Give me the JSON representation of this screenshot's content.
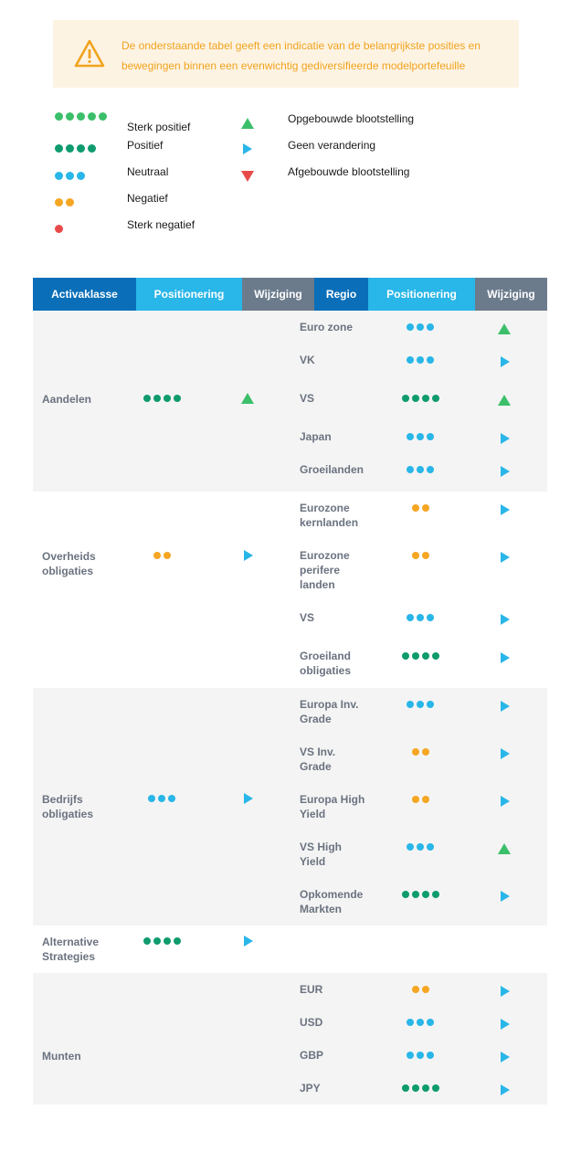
{
  "notice": {
    "icon": "warning-icon",
    "line1": "De onderstaande tabel geeft een indicatie van de belangrijkste posities en",
    "line2": "bewegingen binnen een evenwichtig gediversifieerde modelportefeuille"
  },
  "legend": {
    "levels": [
      {
        "label": "Sterk positief",
        "dots": 5,
        "color": "#3bbf6a"
      },
      {
        "label": "Positief",
        "dots": 4,
        "color": "#0e9b6e"
      },
      {
        "label": "Neutraal",
        "dots": 3,
        "color": "#29b6e8"
      },
      {
        "label": "Negatief",
        "dots": 2,
        "color": "#f5a623"
      },
      {
        "label": "Sterk negatief",
        "dots": 1,
        "color": "#e84a4a"
      }
    ],
    "changes": [
      {
        "label": "Opgebouwde blootstelling",
        "icon": "triangle-up-icon",
        "color": "#3bbf6a"
      },
      {
        "label": "Geen verandering",
        "icon": "triangle-right-icon",
        "color": "#29b6e8"
      },
      {
        "label": "Afgebouwde blootstelling",
        "icon": "triangle-down-icon",
        "color": "#e84a4a"
      }
    ]
  },
  "table": {
    "headers": [
      "Activaklasse",
      "Positionering",
      "Wijziging",
      "Regio",
      "Positionering",
      "Wijziging"
    ],
    "header_colors": [
      "#0a6fb8",
      "#29b6e8",
      "#6b7b8c",
      "#0a6fb8",
      "#29b6e8",
      "#6b7b8c"
    ],
    "groups": [
      {
        "asset": "Aandelen",
        "positioning": 4,
        "change": "up",
        "regions": [
          {
            "name": "Euro zone",
            "positioning": 3,
            "change": "up"
          },
          {
            "name": "VK",
            "positioning": 3,
            "change": "right"
          },
          {
            "name": "VS",
            "positioning": 4,
            "change": "up"
          },
          {
            "name": "Japan",
            "positioning": 3,
            "change": "right"
          },
          {
            "name": "Groeilanden",
            "positioning": 3,
            "change": "right"
          }
        ]
      },
      {
        "asset": "Overheids obligaties",
        "positioning": 2,
        "change": "right",
        "regions": [
          {
            "name": "Eurozone kernlanden",
            "positioning": 2,
            "change": "right"
          },
          {
            "name": "Eurozone perifere landen",
            "positioning": 2,
            "change": "right"
          },
          {
            "name": "VS",
            "positioning": 3,
            "change": "right"
          },
          {
            "name": "Groeiland obligaties",
            "positioning": 4,
            "change": "right"
          }
        ]
      },
      {
        "asset": "Bedrijfs obligaties",
        "positioning": 3,
        "change": "right",
        "regions": [
          {
            "name": "Europa Inv. Grade",
            "positioning": 3,
            "change": "right"
          },
          {
            "name": "VS Inv. Grade",
            "positioning": 2,
            "change": "right"
          },
          {
            "name": "Europa High Yield",
            "positioning": 2,
            "change": "right"
          },
          {
            "name": "VS High Yield",
            "positioning": 3,
            "change": "up"
          },
          {
            "name": "Opkomende Markten",
            "positioning": 4,
            "change": "right"
          }
        ]
      },
      {
        "asset": "Alternative Strategies",
        "positioning": 4,
        "change": "right",
        "regions": []
      },
      {
        "asset": "Munten",
        "positioning": null,
        "change": null,
        "regions": [
          {
            "name": "EUR",
            "positioning": 2,
            "change": "right"
          },
          {
            "name": "USD",
            "positioning": 3,
            "change": "right"
          },
          {
            "name": "GBP",
            "positioning": 3,
            "change": "right"
          },
          {
            "name": "JPY",
            "positioning": 4,
            "change": "right"
          }
        ]
      }
    ]
  }
}
